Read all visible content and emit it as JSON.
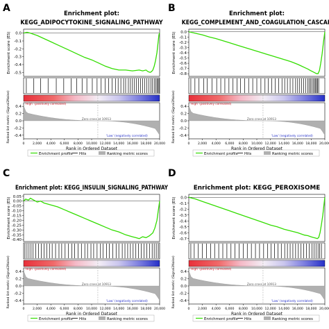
{
  "chart_data": [
    {
      "panel_letter": "A",
      "type": "line",
      "title_line1": "Enrichment plot:",
      "title_line2": "KEGG_ADIPOCYTOKINE_SIGNALING_PATHWAY",
      "ylabel_es": "Enrichment score (ES)",
      "ylabel_metric": "Ranked list metric (Signal2Noise)",
      "xlabel": "Rank in Ordered Dataset",
      "es_ylim": [
        -0.55,
        0.05
      ],
      "es_ticks": [
        "0.0",
        "-0.1",
        "-0.2",
        "-0.3",
        "-0.4",
        "-0.5"
      ],
      "es_tick_values": [
        0.0,
        -0.1,
        -0.2,
        -0.3,
        -0.4,
        -0.5
      ],
      "metric_ylim": [
        -0.5,
        0.5
      ],
      "metric_ticks": [
        "0.4",
        "0.2",
        "0.0",
        "-0.2",
        "-0.4"
      ],
      "metric_tick_values": [
        0.4,
        0.2,
        0.0,
        -0.2,
        -0.4
      ],
      "xlim": [
        0,
        20000
      ],
      "x_ticks": [
        "0",
        "2,000",
        "4,000",
        "6,000",
        "8,000",
        "10,000",
        "12,000",
        "14,000",
        "16,000",
        "18,000",
        "20,000"
      ],
      "x_tick_values": [
        0,
        2000,
        4000,
        6000,
        8000,
        10000,
        12000,
        14000,
        16000,
        18000,
        20000
      ],
      "es_curve": {
        "x": [
          0,
          500,
          1000,
          2000,
          3000,
          4000,
          5000,
          6000,
          7000,
          8000,
          9000,
          10000,
          11000,
          12000,
          13000,
          14000,
          15000,
          16000,
          17000,
          17500,
          18000,
          18300,
          18600,
          18800,
          19000,
          19200,
          19400,
          19600,
          19800,
          19900,
          20000
        ],
        "y": [
          0.0,
          0.01,
          0.0,
          -0.03,
          -0.07,
          -0.11,
          -0.15,
          -0.19,
          -0.23,
          -0.27,
          -0.31,
          -0.34,
          -0.38,
          -0.42,
          -0.45,
          -0.47,
          -0.47,
          -0.48,
          -0.47,
          -0.48,
          -0.47,
          -0.49,
          -0.5,
          -0.49,
          -0.47,
          -0.42,
          -0.35,
          -0.25,
          -0.1,
          -0.02,
          0.0
        ]
      },
      "hit_positions": [
        400,
        1500,
        2500,
        3600,
        4800,
        5900,
        7000,
        7800,
        8600,
        9300,
        10100,
        10800,
        11400,
        12000,
        12500,
        13000,
        13500,
        13900,
        14300,
        14700,
        15000,
        15400,
        15700,
        16000,
        16300,
        16600,
        16900,
        17200,
        17500,
        17800,
        18100,
        18400,
        18700,
        18950,
        19200,
        19400,
        19600,
        19750,
        19900
      ],
      "zero_cross_label": "Zero cross at 10913",
      "zero_cross": 10913,
      "high_label": "'High' (positively correlated)",
      "low_label": "'Low' (negatively correlated)",
      "legend": [
        "Enrichment profile",
        "Hits",
        "Ranking metric scores"
      ]
    },
    {
      "panel_letter": "B",
      "type": "line",
      "title_line1": "Enrichment plot:",
      "title_line2": "KEGG_COMPLEMENT_AND_COAGULATION_CASCAD",
      "ylabel_es": "Enrichment score (ES)",
      "ylabel_metric": "Ranked list metric (Signal2Noise)",
      "xlabel": "Rank in Ordered Dataset",
      "es_ylim": [
        -0.85,
        0.05
      ],
      "es_ticks": [
        "0.0",
        "-0.1",
        "-0.2",
        "-0.3",
        "-0.4",
        "-0.5",
        "-0.6",
        "-0.7",
        "-0.8"
      ],
      "es_tick_values": [
        0.0,
        -0.1,
        -0.2,
        -0.3,
        -0.4,
        -0.5,
        -0.6,
        -0.7,
        -0.8
      ],
      "metric_ylim": [
        -0.5,
        0.5
      ],
      "metric_ticks": [
        "0.4",
        "0.2",
        "0.0",
        "-0.2",
        "-0.4"
      ],
      "metric_tick_values": [
        0.4,
        0.2,
        0.0,
        -0.2,
        -0.4
      ],
      "xlim": [
        0,
        20000
      ],
      "x_ticks": [
        "0",
        "2,000",
        "4,000",
        "6,000",
        "8,000",
        "10,000",
        "12,000",
        "14,000",
        "16,000",
        "18,000",
        "20,000"
      ],
      "x_tick_values": [
        0,
        2000,
        4000,
        6000,
        8000,
        10000,
        12000,
        14000,
        16000,
        18000,
        20000
      ],
      "es_curve": {
        "x": [
          0,
          1000,
          2000,
          3000,
          4000,
          5000,
          6000,
          7000,
          8000,
          9000,
          10000,
          11000,
          12000,
          13000,
          14000,
          15000,
          16000,
          16500,
          17000,
          17500,
          17900,
          18200,
          18500,
          18800,
          19000,
          19200,
          19400,
          19600,
          19800,
          20000
        ],
        "y": [
          0.0,
          -0.03,
          -0.06,
          -0.1,
          -0.13,
          -0.17,
          -0.21,
          -0.25,
          -0.29,
          -0.33,
          -0.37,
          -0.41,
          -0.45,
          -0.49,
          -0.53,
          -0.57,
          -0.62,
          -0.65,
          -0.68,
          -0.71,
          -0.74,
          -0.76,
          -0.78,
          -0.8,
          -0.8,
          -0.74,
          -0.6,
          -0.42,
          -0.2,
          0.0
        ]
      },
      "hit_positions": [
        300,
        900,
        1500,
        2200,
        2700,
        3400,
        4100,
        4700,
        5300,
        5900,
        6500,
        7100,
        7600,
        8200,
        8800,
        9400,
        10000,
        10600,
        11200,
        11700,
        12200,
        12700,
        13200,
        13700,
        14100,
        14500,
        14900,
        15300,
        15700,
        16000,
        16300,
        16600,
        16900,
        17200,
        17500,
        17700,
        17900,
        18100,
        18300,
        18500,
        18650,
        18800,
        18950,
        19100
      ],
      "zero_cross_label": "Zero cross at 10913",
      "zero_cross": 10913,
      "high_label": "'High' (positively correlated)",
      "low_label": "'Low' (negatively correlated)",
      "legend": [
        "Enrichment profile",
        "Hits",
        "Ranking metric scores"
      ]
    },
    {
      "panel_letter": "C",
      "type": "line",
      "title_line1": "",
      "title_line2": "Enrichment plot: KEGG_INSULIN_SIGNALING_PATHWAY",
      "ylabel_es": "Enrichment score (ES)",
      "ylabel_metric": "Ranked list metric (Signal2Noise)",
      "xlabel": "Rank in Ordered Dataset",
      "es_ylim": [
        -0.42,
        0.07
      ],
      "es_ticks": [
        "0.05",
        "0.00",
        "-0.05",
        "-0.10",
        "-0.15",
        "-0.20",
        "-0.25",
        "-0.30",
        "-0.35",
        "-0.40"
      ],
      "es_tick_values": [
        0.05,
        0.0,
        -0.05,
        -0.1,
        -0.15,
        -0.2,
        -0.25,
        -0.3,
        -0.35,
        -0.4
      ],
      "metric_ylim": [
        -0.5,
        0.5
      ],
      "metric_ticks": [
        "0.4",
        "0.2",
        "0.0",
        "-0.2",
        "-0.4"
      ],
      "metric_tick_values": [
        0.4,
        0.2,
        0.0,
        -0.2,
        -0.4
      ],
      "xlim": [
        0,
        20000
      ],
      "x_ticks": [
        "0",
        "2,000",
        "4,000",
        "6,000",
        "8,000",
        "10,000",
        "12,000",
        "14,000",
        "16,000",
        "18,000",
        "20,000"
      ],
      "x_tick_values": [
        0,
        2000,
        4000,
        6000,
        8000,
        10000,
        12000,
        14000,
        16000,
        18000,
        20000
      ],
      "es_curve": {
        "x": [
          0,
          300,
          700,
          1000,
          1500,
          2000,
          2500,
          3000,
          3500,
          4000,
          5000,
          6000,
          7000,
          8000,
          9000,
          10000,
          11000,
          12000,
          13000,
          14000,
          15000,
          16000,
          16500,
          17000,
          17500,
          18000,
          18500,
          19000,
          19300,
          19600,
          19800,
          20000
        ],
        "y": [
          0.0,
          0.02,
          0.01,
          0.03,
          0.01,
          -0.01,
          0.0,
          -0.02,
          -0.03,
          -0.04,
          -0.06,
          -0.09,
          -0.12,
          -0.15,
          -0.18,
          -0.21,
          -0.24,
          -0.27,
          -0.3,
          -0.32,
          -0.35,
          -0.37,
          -0.38,
          -0.39,
          -0.37,
          -0.38,
          -0.36,
          -0.33,
          -0.28,
          -0.2,
          -0.1,
          0.0
        ]
      },
      "hit_positions": [
        200,
        500,
        800,
        1100,
        1400,
        1800,
        2200,
        2600,
        3000,
        3400,
        3800,
        4200,
        4700,
        5200,
        5600,
        6100,
        6600,
        7100,
        7500,
        8000,
        8500,
        9000,
        9400,
        9900,
        10300,
        10800,
        11300,
        11700,
        12200,
        12600,
        13100,
        13600,
        14000,
        14500,
        14900,
        15300,
        15700,
        16100,
        16500,
        16900,
        17300,
        17700,
        18100,
        18500,
        18900,
        19200,
        19500,
        19800
      ],
      "zero_cross_label": "Zero cross at 10913",
      "zero_cross": 10913,
      "high_label": "'High' (positively correlated)",
      "low_label": "'Low' (negatively correlated)",
      "legend": [
        "Enrichment profile",
        "Hits",
        "Ranking metric scores"
      ]
    },
    {
      "panel_letter": "D",
      "type": "line",
      "title_line1": "",
      "title_line2": "Enrichment plot: KEGG_PEROXISOME",
      "ylabel_es": "Enrichment score (ES)",
      "ylabel_metric": "Ranked list metric (Signal2Noise)",
      "xlabel": "Rank in Ordered Dataset",
      "es_ylim": [
        -0.75,
        0.05
      ],
      "es_ticks": [
        "0.0",
        "-0.1",
        "-0.2",
        "-0.3",
        "-0.4",
        "-0.5",
        "-0.6",
        "-0.7"
      ],
      "es_tick_values": [
        0.0,
        -0.1,
        -0.2,
        -0.3,
        -0.4,
        -0.5,
        -0.6,
        -0.7
      ],
      "metric_ylim": [
        -0.5,
        0.5
      ],
      "metric_ticks": [
        "0.4",
        "0.2",
        "0.0",
        "-0.2",
        "-0.4"
      ],
      "metric_tick_values": [
        0.4,
        0.2,
        0.0,
        -0.2,
        -0.4
      ],
      "xlim": [
        0,
        20000
      ],
      "x_ticks": [
        "0",
        "2,000",
        "4,000",
        "6,000",
        "8,000",
        "10,000",
        "12,000",
        "14,000",
        "16,000",
        "18,000",
        "20,000"
      ],
      "x_tick_values": [
        0,
        2000,
        4000,
        6000,
        8000,
        10000,
        12000,
        14000,
        16000,
        18000,
        20000
      ],
      "es_curve": {
        "x": [
          0,
          1000,
          2000,
          3000,
          4000,
          5000,
          6000,
          7000,
          8000,
          9000,
          10000,
          11000,
          12000,
          13000,
          14000,
          15000,
          16000,
          16500,
          17000,
          17500,
          18000,
          18300,
          18600,
          18900,
          19100,
          19300,
          19500,
          19700,
          19850,
          20000
        ],
        "y": [
          0.0,
          -0.03,
          -0.07,
          -0.11,
          -0.15,
          -0.19,
          -0.23,
          -0.27,
          -0.31,
          -0.35,
          -0.39,
          -0.43,
          -0.47,
          -0.5,
          -0.54,
          -0.57,
          -0.6,
          -0.62,
          -0.64,
          -0.65,
          -0.67,
          -0.68,
          -0.69,
          -0.7,
          -0.68,
          -0.6,
          -0.46,
          -0.3,
          -0.15,
          0.0
        ]
      },
      "hit_positions": [
        300,
        800,
        1400,
        2000,
        2600,
        3200,
        3800,
        4400,
        5000,
        5600,
        6200,
        6800,
        7400,
        8000,
        8600,
        9200,
        9800,
        10400,
        11000,
        11600,
        12100,
        12600,
        13100,
        13600,
        14100,
        14500,
        14900,
        15300,
        15700,
        16100,
        16500,
        16900,
        17300,
        17700,
        18100,
        18400,
        18700,
        19000,
        19250,
        19500
      ],
      "zero_cross_label": "Zero cross at 10913",
      "zero_cross": 10913,
      "high_label": "'High' (positively correlated)",
      "low_label": "'Low' (negatively correlated)",
      "legend": [
        "Enrichment profile",
        "Hits",
        "Ranking metric scores"
      ]
    }
  ],
  "colors": {
    "enrichment_profile": "#33dd00",
    "hits": "#000000",
    "metric_fill": "#b0b0b0",
    "high_red": "#e8303a",
    "low_blue": "#2530c8",
    "zero_cross_line": "#9a9a9a",
    "text": "#000000"
  }
}
